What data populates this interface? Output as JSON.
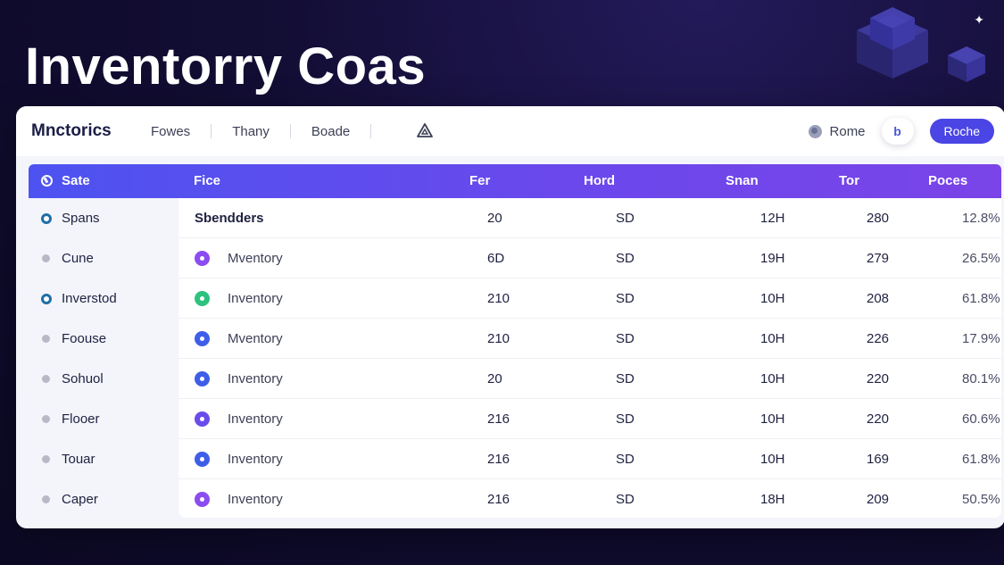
{
  "hero": {
    "title": "Inventorry Coas"
  },
  "topbar": {
    "brand": "Mnctorics",
    "nav": [
      "Fowes",
      "Thany",
      "Boade"
    ],
    "home_label": "Rome",
    "round_button_label": "b",
    "primary_button_label": "Roche"
  },
  "table": {
    "columns": {
      "state": "Sate",
      "fice": "Fice",
      "fer": "Fer",
      "hord": "Hord",
      "snan": "Snan",
      "tor": "Tor",
      "poces": "Poces"
    },
    "rows": [
      {
        "side": "Spans",
        "side_active": true,
        "name": "Sbendders",
        "icon_color": "",
        "fer": "20",
        "hord": "SD",
        "snan": "12H",
        "tor": "280",
        "poces": "12.8%"
      },
      {
        "side": "Cune",
        "side_active": false,
        "name": "Mventory",
        "icon_color": "#8b4cf0",
        "fer": "6D",
        "hord": "SD",
        "snan": "19H",
        "tor": "279",
        "poces": "26.5%"
      },
      {
        "side": "Inverstod",
        "side_active": true,
        "name": "Inventory",
        "icon_color": "#2ec27e",
        "fer": "210",
        "hord": "SD",
        "snan": "10H",
        "tor": "208",
        "poces": "61.8%"
      },
      {
        "side": "Foouse",
        "side_active": false,
        "name": "Mventory",
        "icon_color": "#3f5ee8",
        "fer": "210",
        "hord": "SD",
        "snan": "10H",
        "tor": "226",
        "poces": "17.9%"
      },
      {
        "side": "Sohuol",
        "side_active": false,
        "name": "Inventory",
        "icon_color": "#3f5ee8",
        "fer": "20",
        "hord": "SD",
        "snan": "10H",
        "tor": "220",
        "poces": "80.1%"
      },
      {
        "side": "Flooer",
        "side_active": false,
        "name": "Inventory",
        "icon_color": "#6a4cec",
        "fer": "216",
        "hord": "SD",
        "snan": "10H",
        "tor": "220",
        "poces": "60.6%"
      },
      {
        "side": "Touar",
        "side_active": false,
        "name": "Inventory",
        "icon_color": "#3f5ee8",
        "fer": "216",
        "hord": "SD",
        "snan": "10H",
        "tor": "169",
        "poces": "61.8%"
      },
      {
        "side": "Caper",
        "side_active": false,
        "name": "Inventory",
        "icon_color": "#8b4cf0",
        "fer": "216",
        "hord": "SD",
        "snan": "18H",
        "tor": "209",
        "poces": "50.5%"
      }
    ]
  }
}
